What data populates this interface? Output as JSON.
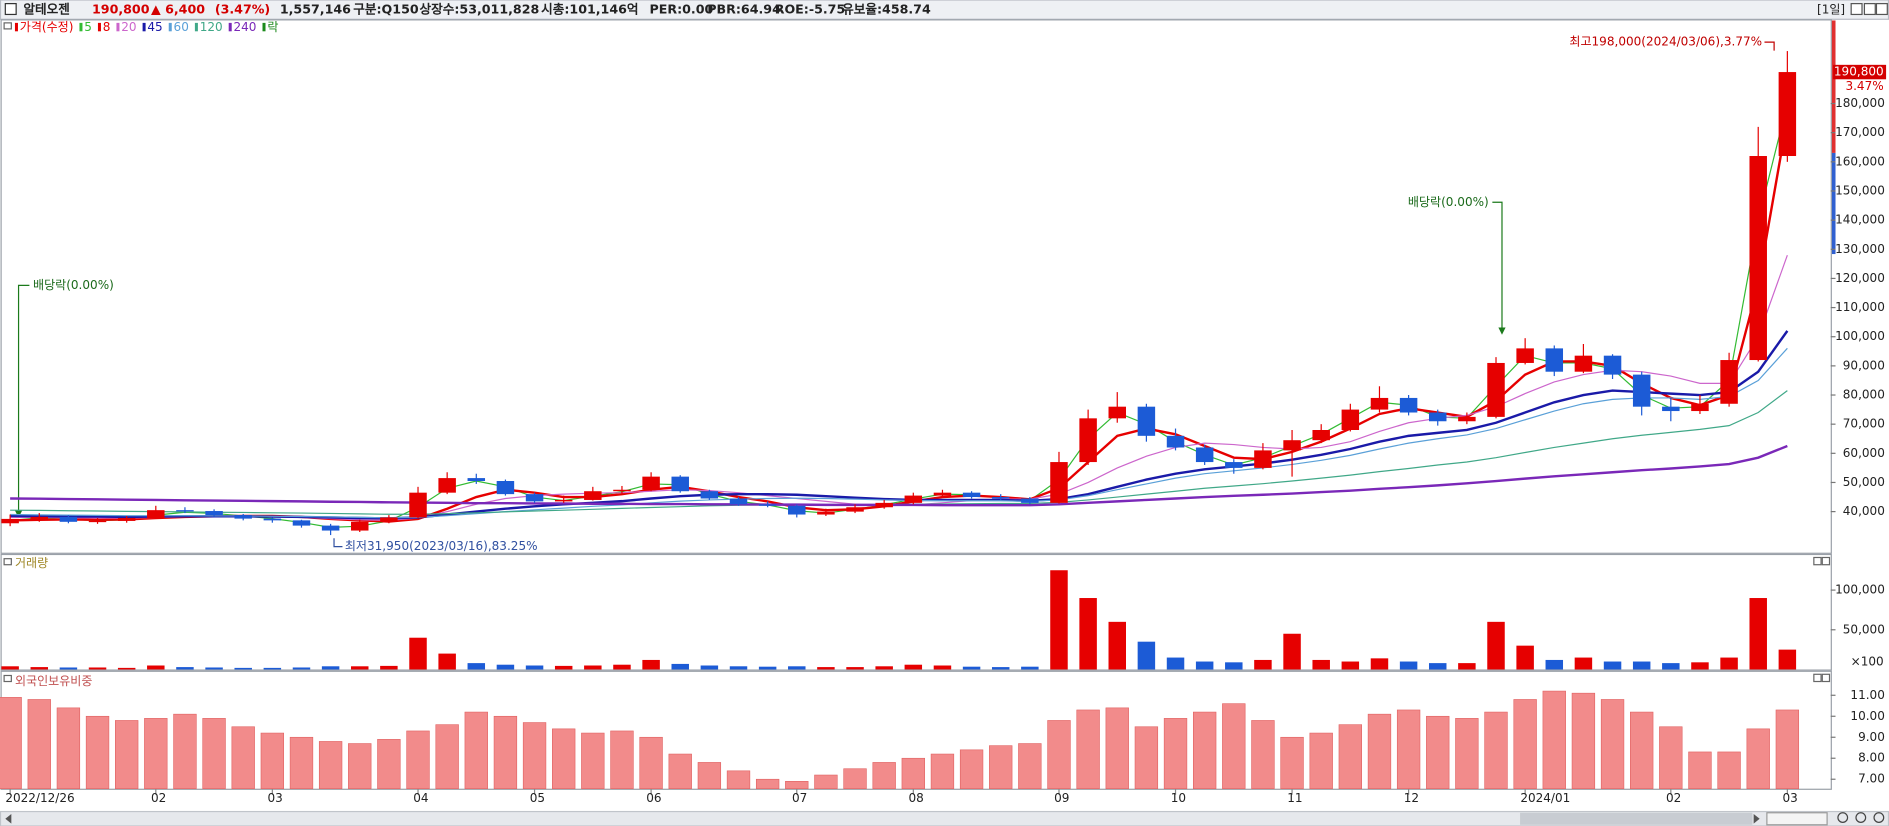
{
  "header": {
    "name": "알테오젠",
    "price": "190,800",
    "change": "▲ 6,400",
    "change_rate": "(3.47%)",
    "volume": "1,557,146",
    "market": "구분:Q150",
    "shares": "상장수:53,011,828",
    "market_cap": "시총:101,146억",
    "per": "PER:0.00",
    "pbr": "PBR:64.94",
    "roe": "ROE:-5.75",
    "reserve_ratio": "유보율:458.74",
    "period": "[1일]"
  },
  "chart_data": [
    {
      "type": "candlestick",
      "price_label": "가격(수정)",
      "price_color": "#e60000",
      "ex_dividend_label": "락",
      "ex_dividend_color": "#1b8a1b",
      "up_color": "#e60000",
      "down_color": "#1c5bd6",
      "categories": [
        "2022/12/26",
        null,
        null,
        null,
        null,
        "02",
        null,
        null,
        null,
        "03",
        null,
        null,
        null,
        null,
        "04",
        null,
        null,
        null,
        "05",
        null,
        null,
        null,
        "06",
        null,
        null,
        null,
        null,
        "07",
        null,
        null,
        null,
        "08",
        null,
        null,
        null,
        null,
        "09",
        null,
        null,
        null,
        "10",
        null,
        null,
        null,
        "11",
        null,
        null,
        null,
        "12",
        null,
        null,
        null,
        "2024/01",
        null,
        null,
        null,
        null,
        "02",
        null,
        null,
        null,
        "03"
      ],
      "open": [
        36000,
        37500,
        38200,
        36500,
        36800,
        37800,
        40500,
        40200,
        38800,
        37600,
        37000,
        35200,
        33500,
        36500,
        38000,
        46500,
        51500,
        50500,
        46000,
        43500,
        44000,
        47000,
        47500,
        52000,
        47000,
        44500,
        42500,
        42000,
        39000,
        40000,
        41500,
        43000,
        45500,
        46500,
        45000,
        44500,
        43000,
        57000,
        72000,
        76000,
        66000,
        62000,
        57000,
        55000,
        61000,
        64500,
        68000,
        75000,
        79000,
        74000,
        71000,
        72500,
        91000,
        96000,
        88000,
        93500,
        87000,
        76000,
        74500,
        77000,
        92000,
        162000
      ],
      "high": [
        39000,
        39500,
        38800,
        37800,
        38500,
        42000,
        41500,
        40800,
        39200,
        38000,
        37200,
        35800,
        37200,
        38800,
        48500,
        53500,
        53000,
        51000,
        46500,
        45500,
        48500,
        48800,
        53500,
        52500,
        47500,
        45000,
        43500,
        42500,
        41000,
        42500,
        44000,
        46500,
        47500,
        47000,
        46000,
        45000,
        60500,
        75000,
        81000,
        77000,
        68500,
        63000,
        58000,
        63500,
        68000,
        70000,
        77000,
        83000,
        80000,
        75000,
        74000,
        93000,
        99500,
        97000,
        97500,
        94000,
        88000,
        79000,
        80000,
        94500,
        172000,
        198000
      ],
      "low": [
        35000,
        36500,
        36000,
        35800,
        36200,
        37500,
        39500,
        38200,
        37000,
        36200,
        34500,
        31950,
        33000,
        36000,
        37800,
        46000,
        49500,
        45500,
        43000,
        43000,
        43800,
        46000,
        47000,
        46500,
        44000,
        42000,
        41500,
        38000,
        38500,
        39500,
        41000,
        42500,
        45000,
        44500,
        44000,
        42500,
        42800,
        56000,
        70500,
        64000,
        61000,
        56000,
        53000,
        54500,
        52000,
        63500,
        67500,
        74000,
        73000,
        69500,
        70000,
        72000,
        90500,
        86500,
        87500,
        85500,
        73000,
        71000,
        73500,
        76000,
        91500,
        160000
      ],
      "close": [
        37500,
        38200,
        36500,
        36800,
        37800,
        40500,
        40200,
        38800,
        37600,
        37000,
        35200,
        33500,
        36500,
        38000,
        46500,
        51500,
        50500,
        46000,
        43500,
        44000,
        47000,
        47500,
        52000,
        47000,
        44500,
        42500,
        42000,
        39000,
        40000,
        41500,
        43000,
        45500,
        46500,
        45000,
        44500,
        43000,
        57000,
        72000,
        76000,
        66000,
        62000,
        57000,
        55000,
        61000,
        64500,
        68000,
        75000,
        79000,
        74000,
        71000,
        72500,
        91000,
        96000,
        88000,
        93500,
        87000,
        76000,
        74500,
        77000,
        92000,
        162000,
        190800
      ],
      "series": [
        {
          "name": "5",
          "color": "#33bb33",
          "line_width": 1,
          "values": [
            37000,
            37800,
            37400,
            36900,
            37200,
            38800,
            39800,
            39400,
            38500,
            37600,
            36300,
            34600,
            35000,
            36800,
            41500,
            48000,
            50500,
            48500,
            45000,
            43800,
            45300,
            46800,
            49500,
            49200,
            46000,
            43500,
            42300,
            40300,
            39500,
            40800,
            42300,
            44300,
            46000,
            45800,
            44800,
            43800,
            51000,
            65000,
            74000,
            70000,
            64000,
            59500,
            56000,
            58500,
            62500,
            66500,
            72000,
            77500,
            76500,
            72500,
            72000,
            83000,
            93500,
            91000,
            91000,
            89000,
            80000,
            75500,
            76000,
            85000,
            140000,
            180000
          ]
        },
        {
          "name": "8",
          "color": "#e60000",
          "line_width": 2,
          "values": [
            37000,
            37200,
            37300,
            37200,
            37300,
            37800,
            38200,
            38400,
            38500,
            38500,
            38200,
            37500,
            37000,
            36600,
            37500,
            41000,
            45000,
            47500,
            46500,
            45000,
            45000,
            46000,
            47500,
            48500,
            47000,
            45000,
            43500,
            41500,
            40500,
            40800,
            41800,
            43500,
            45000,
            45500,
            45000,
            44200,
            48000,
            57000,
            66000,
            68500,
            66500,
            62500,
            58500,
            58000,
            60500,
            64000,
            68500,
            73500,
            75500,
            74000,
            72500,
            78000,
            87000,
            91500,
            91500,
            90000,
            84000,
            79000,
            76500,
            80000,
            118000,
            175000
          ]
        },
        {
          "name": "20",
          "color": "#cc66cc",
          "line_width": 1,
          "values": [
            38000,
            38000,
            37900,
            37800,
            37800,
            38000,
            38200,
            38300,
            38300,
            38200,
            38000,
            37600,
            37200,
            37000,
            37800,
            40000,
            42500,
            44500,
            45500,
            46000,
            46300,
            46500,
            47000,
            47500,
            47200,
            46500,
            45500,
            44500,
            43500,
            42500,
            42000,
            42300,
            43000,
            43800,
            44300,
            44300,
            46000,
            50000,
            55000,
            59000,
            62000,
            63500,
            63000,
            62000,
            61500,
            62000,
            64000,
            67500,
            70500,
            72000,
            73000,
            76000,
            80500,
            84500,
            87000,
            88500,
            88000,
            86500,
            84000,
            84000,
            100000,
            128000
          ]
        },
        {
          "name": "45",
          "color": "#1a1aa8",
          "line_width": 2,
          "values": [
            38500,
            38400,
            38300,
            38300,
            38200,
            38300,
            38400,
            38400,
            38400,
            38300,
            38200,
            38000,
            37800,
            37700,
            38000,
            39000,
            40000,
            41000,
            41800,
            42500,
            43000,
            43600,
            44500,
            45300,
            45800,
            46000,
            46000,
            45800,
            45300,
            44800,
            44300,
            44000,
            44000,
            44000,
            44000,
            43700,
            44300,
            46000,
            48500,
            51000,
            53000,
            54500,
            55500,
            56500,
            57800,
            59500,
            61500,
            64000,
            66000,
            67000,
            68000,
            70500,
            74000,
            77500,
            80000,
            81500,
            81000,
            80500,
            80000,
            81000,
            88000,
            102000
          ]
        },
        {
          "name": "60",
          "color": "#5aa0d8",
          "line_width": 1,
          "values": [
            39000,
            38900,
            38800,
            38700,
            38600,
            38600,
            38600,
            38500,
            38500,
            38400,
            38300,
            38200,
            38000,
            37900,
            38000,
            38600,
            39300,
            40000,
            40600,
            41200,
            41800,
            42300,
            43000,
            43600,
            44000,
            44300,
            44500,
            44600,
            44500,
            44300,
            44000,
            43800,
            43700,
            43700,
            43700,
            43500,
            44000,
            45500,
            47500,
            49500,
            51500,
            53000,
            54000,
            55000,
            56200,
            57600,
            59300,
            61500,
            63500,
            65000,
            66300,
            68500,
            71500,
            74500,
            77000,
            78500,
            79000,
            79000,
            78500,
            79500,
            85000,
            96000
          ]
        },
        {
          "name": "120",
          "color": "#40a888",
          "line_width": 1,
          "values": [
            40500,
            40400,
            40300,
            40200,
            40100,
            40000,
            39900,
            39800,
            39700,
            39600,
            39500,
            39400,
            39200,
            39100,
            39100,
            39300,
            39600,
            39900,
            40200,
            40500,
            40800,
            41100,
            41400,
            41700,
            42000,
            42200,
            42300,
            42400,
            42400,
            42400,
            42400,
            42500,
            42600,
            42700,
            42800,
            42800,
            43200,
            44000,
            45000,
            46000,
            47000,
            48000,
            48800,
            49600,
            50500,
            51500,
            52500,
            53700,
            54800,
            56000,
            57000,
            58500,
            60300,
            62000,
            63500,
            65000,
            66200,
            67200,
            68200,
            69500,
            74000,
            81500
          ]
        },
        {
          "name": "240",
          "color": "#7a28b8",
          "line_width": 2,
          "values": [
            44500,
            44400,
            44300,
            44200,
            44100,
            44000,
            43900,
            43800,
            43700,
            43600,
            43500,
            43400,
            43300,
            43200,
            43100,
            43000,
            42900,
            42900,
            42800,
            42800,
            42700,
            42700,
            42600,
            42600,
            42500,
            42500,
            42400,
            42400,
            42300,
            42300,
            42300,
            42300,
            42200,
            42200,
            42200,
            42200,
            42500,
            43000,
            43500,
            44000,
            44500,
            45000,
            45400,
            45800,
            46200,
            46700,
            47200,
            47800,
            48400,
            49000,
            49700,
            50500,
            51300,
            52100,
            52800,
            53500,
            54200,
            54800,
            55500,
            56300,
            58500,
            62500
          ]
        }
      ],
      "ylim": [
        25500,
        208500
      ],
      "yticks": [
        {
          "value": 40000,
          "label": "40,000"
        },
        {
          "value": 50000,
          "label": "50,000"
        },
        {
          "value": 60000,
          "label": "60,000"
        },
        {
          "value": 70000,
          "label": "70,000"
        },
        {
          "value": 80000,
          "label": "80,000"
        },
        {
          "value": 90000,
          "label": "90,000"
        },
        {
          "value": 100000,
          "label": "100,000"
        },
        {
          "value": 110000,
          "label": "110,000"
        },
        {
          "value": 120000,
          "label": "120,000"
        },
        {
          "value": 130000,
          "label": "130,000"
        },
        {
          "value": 140000,
          "label": "140,000"
        },
        {
          "value": 150000,
          "label": "150,000"
        },
        {
          "value": 160000,
          "label": "160,000"
        },
        {
          "value": 170000,
          "label": "170,000"
        },
        {
          "value": 180000,
          "label": "180,000"
        }
      ],
      "ex_dividend_notes": [
        "배당락(0.00%)",
        "배당락(0.00%)"
      ],
      "low_note": "최저31,950(2023/03/16),83.25%",
      "high_note": "최고198,000(2024/03/06),3.77%",
      "last_price_label": "190,800",
      "last_change_label": "3.47%"
    },
    {
      "type": "bar",
      "title": "거래량",
      "unit_label": "×100",
      "values": [
        4000,
        3000,
        2500,
        2500,
        2000,
        5000,
        3000,
        2500,
        2000,
        2000,
        2500,
        4000,
        4000,
        4500,
        40000,
        20000,
        8000,
        6000,
        5000,
        4500,
        5000,
        6000,
        12000,
        7000,
        5000,
        4000,
        3500,
        4000,
        3000,
        3000,
        4000,
        6000,
        5000,
        3500,
        3000,
        3500,
        125000,
        90000,
        60000,
        35000,
        15000,
        10000,
        9000,
        12000,
        45000,
        12000,
        10000,
        14000,
        10000,
        8000,
        8000,
        60000,
        30000,
        12000,
        15000,
        10000,
        10000,
        8000,
        9000,
        15000,
        90000,
        25000
      ],
      "ylim": [
        0,
        135000
      ],
      "yticks": [
        {
          "value": 50000,
          "label": "50,000"
        },
        {
          "value": 100000,
          "label": "100,000"
        }
      ]
    },
    {
      "type": "bar",
      "title": "외국인보유비중",
      "color": "#f28b8b",
      "values": [
        10.9,
        10.8,
        10.4,
        10.0,
        9.8,
        9.9,
        10.1,
        9.9,
        9.5,
        9.2,
        9.0,
        8.8,
        8.7,
        8.9,
        9.3,
        9.6,
        10.2,
        10.0,
        9.7,
        9.4,
        9.2,
        9.3,
        9.0,
        8.2,
        7.8,
        7.4,
        7.0,
        6.9,
        7.2,
        7.5,
        7.8,
        8.0,
        8.2,
        8.4,
        8.6,
        8.7,
        9.8,
        10.3,
        10.4,
        9.5,
        9.9,
        10.2,
        10.6,
        9.8,
        9.0,
        9.2,
        9.6,
        10.1,
        10.3,
        10.0,
        9.9,
        10.2,
        10.8,
        11.2,
        11.1,
        10.8,
        10.2,
        9.5,
        8.3,
        8.3,
        9.4,
        10.3
      ],
      "ylim": [
        6.55,
        12
      ],
      "yticks": [
        {
          "value": 7,
          "label": "7.00"
        },
        {
          "value": 8,
          "label": "8.00"
        },
        {
          "value": 9,
          "label": "9.00"
        },
        {
          "value": 10,
          "label": "10.00"
        },
        {
          "value": 11,
          "label": "11.00"
        }
      ]
    }
  ]
}
